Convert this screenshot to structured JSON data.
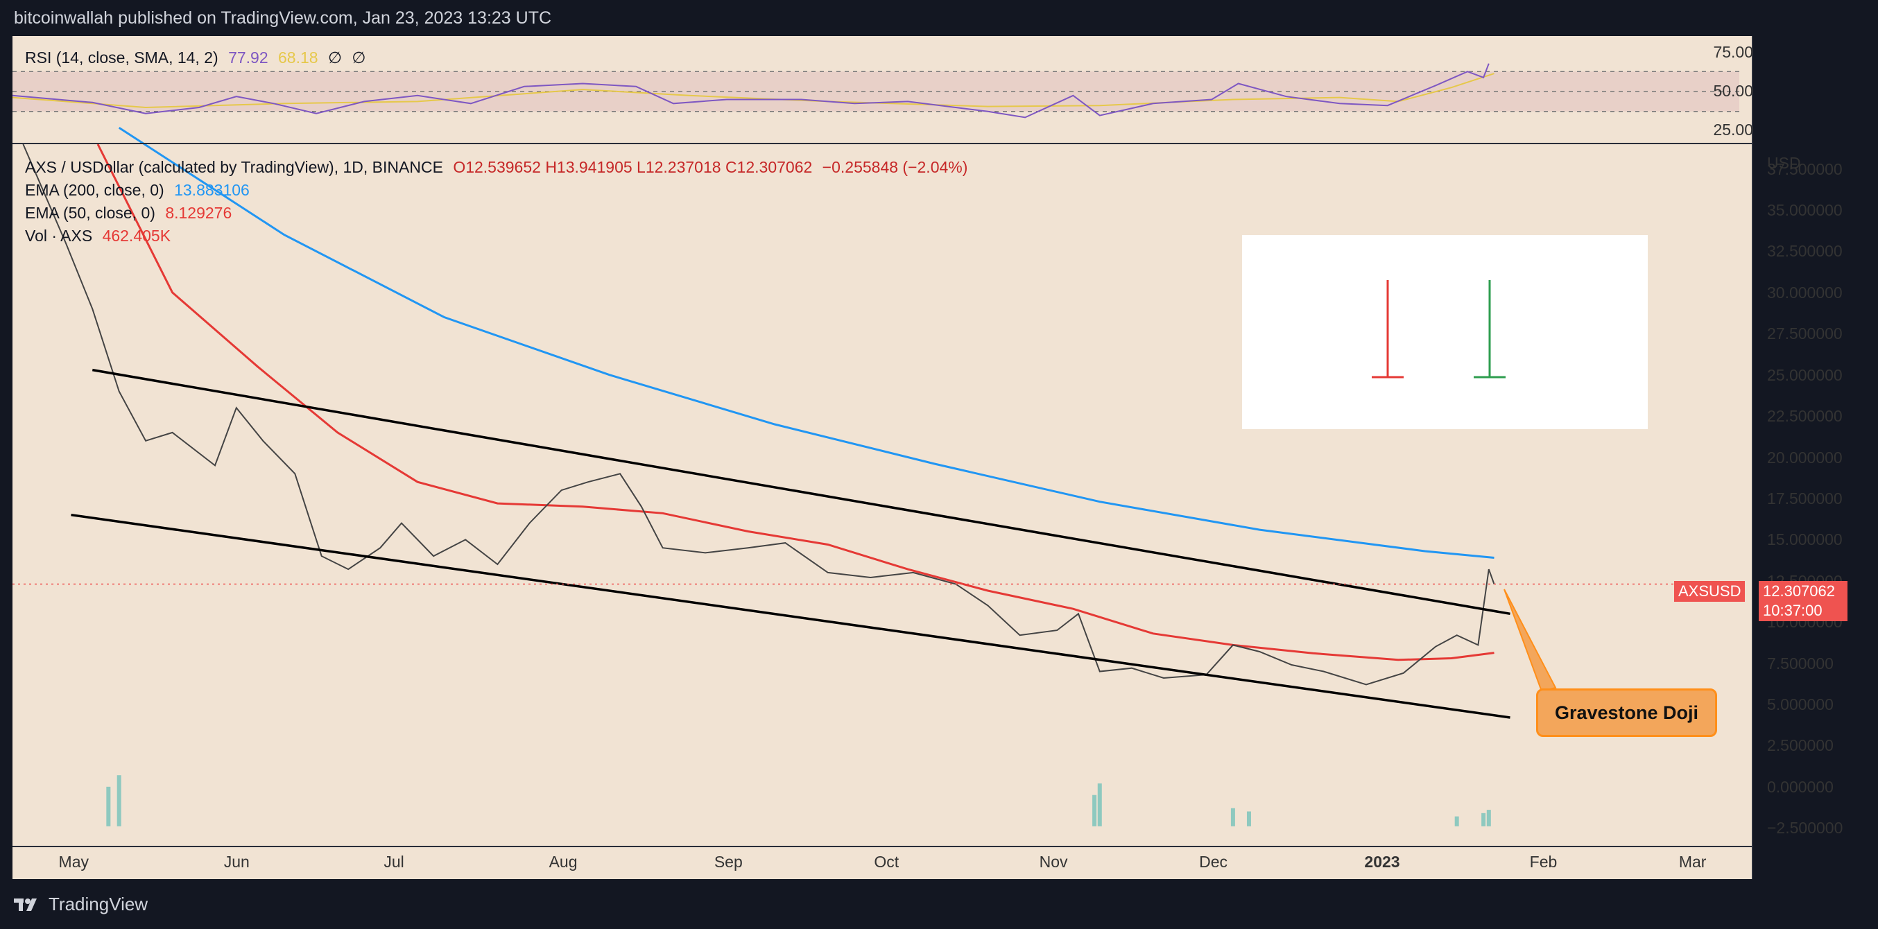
{
  "header": {
    "published": "bitcoinwallah published on TradingView.com, Jan 23, 2023 13:23 UTC"
  },
  "legend": {
    "rsi_label": "RSI (14, close, SMA, 14, 2)",
    "rsi_value": "77.92",
    "rsi_sma": "68.18",
    "rsi_na1": "∅",
    "rsi_na2": "∅",
    "symbol": "AXS / USDollar (calculated by TradingView), 1D, BINANCE",
    "ohlc": "O12.539652  H13.941905  L12.237018  C12.307062",
    "change": "−0.255848 (−2.04%)",
    "ema200_label": "EMA (200, close, 0)",
    "ema200_value": "13.883106",
    "ema50_label": "EMA (50, close, 0)",
    "ema50_value": "8.129276",
    "vol_label": "Vol · AXS",
    "vol_value": "462.405K"
  },
  "price_axis": {
    "currency": "USD",
    "labels": [
      "37.500000",
      "35.000000",
      "32.500000",
      "30.000000",
      "27.500000",
      "25.000000",
      "22.500000",
      "20.000000",
      "17.500000",
      "15.000000",
      "12.500000",
      "10.000000",
      "7.500000",
      "5.000000",
      "2.500000",
      "0.000000",
      "−2.500000"
    ],
    "last_symbol": "AXSUSD",
    "last_price": "12.307062",
    "countdown": "10:37:00"
  },
  "rsi_axis": {
    "labels": [
      "75.00",
      "50.00",
      "25.00"
    ]
  },
  "time_axis": {
    "labels": [
      "May",
      "Jun",
      "Jul",
      "Aug",
      "Sep",
      "Oct",
      "Nov",
      "Dec",
      "2023",
      "Feb",
      "Mar"
    ]
  },
  "annotation": {
    "label": "Gravestone Doji"
  },
  "footer": {
    "brand": "TradingView"
  },
  "colors": {
    "background": "#f1e3d3",
    "up": "#26a69a",
    "down": "#ef5350",
    "ema200": "#2196f3",
    "ema50": "#e53935",
    "rsi": "#7e57c2",
    "rsi_sma": "#e6c84a",
    "annotation": "#f3a65b"
  },
  "chart_data": {
    "type": "line",
    "x_range": [
      "2022-04-20",
      "2023-03-10"
    ],
    "y_range": [
      -3.5,
      39
    ],
    "close_path": [
      [
        "2022-04-22",
        39
      ],
      [
        "2022-04-30",
        33
      ],
      [
        "2022-05-05",
        29
      ],
      [
        "2022-05-10",
        24
      ],
      [
        "2022-05-15",
        21
      ],
      [
        "2022-05-20",
        21.5
      ],
      [
        "2022-05-28",
        19.5
      ],
      [
        "2022-06-01",
        23
      ],
      [
        "2022-06-06",
        21
      ],
      [
        "2022-06-12",
        19
      ],
      [
        "2022-06-17",
        14
      ],
      [
        "2022-06-22",
        13.2
      ],
      [
        "2022-06-28",
        14.5
      ],
      [
        "2022-07-02",
        16
      ],
      [
        "2022-07-08",
        14
      ],
      [
        "2022-07-14",
        15
      ],
      [
        "2022-07-20",
        13.5
      ],
      [
        "2022-07-26",
        16
      ],
      [
        "2022-08-01",
        18
      ],
      [
        "2022-08-06",
        18.5
      ],
      [
        "2022-08-12",
        19
      ],
      [
        "2022-08-16",
        17
      ],
      [
        "2022-08-20",
        14.5
      ],
      [
        "2022-08-28",
        14.2
      ],
      [
        "2022-09-05",
        14.5
      ],
      [
        "2022-09-12",
        14.8
      ],
      [
        "2022-09-20",
        13
      ],
      [
        "2022-09-28",
        12.7
      ],
      [
        "2022-10-06",
        13
      ],
      [
        "2022-10-14",
        12.3
      ],
      [
        "2022-10-20",
        11
      ],
      [
        "2022-10-26",
        9.2
      ],
      [
        "2022-11-02",
        9.5
      ],
      [
        "2022-11-06",
        10.5
      ],
      [
        "2022-11-10",
        7
      ],
      [
        "2022-11-16",
        7.2
      ],
      [
        "2022-11-22",
        6.6
      ],
      [
        "2022-11-30",
        6.8
      ],
      [
        "2022-12-05",
        8.6
      ],
      [
        "2022-12-10",
        8.2
      ],
      [
        "2022-12-16",
        7.4
      ],
      [
        "2022-12-22",
        7
      ],
      [
        "2022-12-30",
        6.2
      ],
      [
        "2023-01-06",
        6.9
      ],
      [
        "2023-01-12",
        8.5
      ],
      [
        "2023-01-16",
        9.2
      ],
      [
        "2023-01-20",
        8.6
      ],
      [
        "2023-01-22",
        13.2
      ],
      [
        "2023-01-23",
        12.3
      ]
    ],
    "ema200": [
      [
        "2022-05-10",
        40
      ],
      [
        "2022-06-10",
        33.5
      ],
      [
        "2022-07-10",
        28.5
      ],
      [
        "2022-08-10",
        25
      ],
      [
        "2022-09-10",
        22
      ],
      [
        "2022-10-10",
        19.6
      ],
      [
        "2022-11-10",
        17.3
      ],
      [
        "2022-12-10",
        15.6
      ],
      [
        "2023-01-10",
        14.3
      ],
      [
        "2023-01-23",
        13.9
      ]
    ],
    "ema50": [
      [
        "2022-05-06",
        39
      ],
      [
        "2022-05-20",
        30
      ],
      [
        "2022-06-05",
        25.5
      ],
      [
        "2022-06-20",
        21.5
      ],
      [
        "2022-07-05",
        18.5
      ],
      [
        "2022-07-20",
        17.2
      ],
      [
        "2022-08-05",
        17
      ],
      [
        "2022-08-20",
        16.6
      ],
      [
        "2022-09-05",
        15.5
      ],
      [
        "2022-09-20",
        14.7
      ],
      [
        "2022-10-05",
        13.2
      ],
      [
        "2022-10-20",
        11.9
      ],
      [
        "2022-11-05",
        10.8
      ],
      [
        "2022-11-20",
        9.3
      ],
      [
        "2022-12-05",
        8.6
      ],
      [
        "2022-12-20",
        8.1
      ],
      [
        "2023-01-05",
        7.7
      ],
      [
        "2023-01-15",
        7.8
      ],
      [
        "2023-01-23",
        8.13
      ]
    ],
    "trendlines": [
      [
        [
          "2022-05-05",
          25.3
        ],
        [
          "2023-01-26",
          10.5
        ]
      ],
      [
        [
          "2022-05-01",
          16.5
        ],
        [
          "2023-01-26",
          4.2
        ]
      ]
    ],
    "volume_spikes": [
      [
        "2022-05-08",
        2.4
      ],
      [
        "2022-05-10",
        3.1
      ],
      [
        "2022-11-09",
        1.9
      ],
      [
        "2022-11-10",
        2.6
      ],
      [
        "2022-12-05",
        1.1
      ],
      [
        "2022-12-08",
        0.9
      ],
      [
        "2023-01-16",
        0.6
      ],
      [
        "2023-01-21",
        0.8
      ],
      [
        "2023-01-22",
        1.0
      ]
    ],
    "rsi": {
      "y_range": [
        0,
        100
      ],
      "levels": [
        70,
        50,
        30
      ],
      "points": [
        [
          "2022-04-20",
          46
        ],
        [
          "2022-05-05",
          39
        ],
        [
          "2022-05-15",
          28
        ],
        [
          "2022-05-25",
          34
        ],
        [
          "2022-06-01",
          45
        ],
        [
          "2022-06-08",
          38
        ],
        [
          "2022-06-16",
          28
        ],
        [
          "2022-06-25",
          40
        ],
        [
          "2022-07-05",
          46
        ],
        [
          "2022-07-15",
          38
        ],
        [
          "2022-07-25",
          55
        ],
        [
          "2022-08-05",
          58
        ],
        [
          "2022-08-15",
          55
        ],
        [
          "2022-08-22",
          38
        ],
        [
          "2022-09-01",
          42
        ],
        [
          "2022-09-15",
          42
        ],
        [
          "2022-09-25",
          38
        ],
        [
          "2022-10-05",
          40
        ],
        [
          "2022-10-20",
          30
        ],
        [
          "2022-10-27",
          24
        ],
        [
          "2022-11-05",
          46
        ],
        [
          "2022-11-10",
          26
        ],
        [
          "2022-11-20",
          38
        ],
        [
          "2022-12-01",
          42
        ],
        [
          "2022-12-06",
          58
        ],
        [
          "2022-12-15",
          45
        ],
        [
          "2022-12-25",
          38
        ],
        [
          "2023-01-03",
          36
        ],
        [
          "2023-01-12",
          56
        ],
        [
          "2023-01-18",
          70
        ],
        [
          "2023-01-21",
          64
        ],
        [
          "2023-01-22",
          78
        ]
      ],
      "sma_points": [
        [
          "2022-04-20",
          44
        ],
        [
          "2022-05-15",
          34
        ],
        [
          "2022-06-10",
          38
        ],
        [
          "2022-07-05",
          40
        ],
        [
          "2022-08-05",
          52
        ],
        [
          "2022-08-25",
          46
        ],
        [
          "2022-09-20",
          40
        ],
        [
          "2022-10-20",
          35
        ],
        [
          "2022-11-10",
          36
        ],
        [
          "2022-12-05",
          42
        ],
        [
          "2022-12-25",
          44
        ],
        [
          "2023-01-05",
          40
        ],
        [
          "2023-01-15",
          54
        ],
        [
          "2023-01-23",
          68
        ]
      ]
    },
    "inset_legend": [
      "bearish gravestone doji",
      "bullish gravestone doji"
    ]
  }
}
